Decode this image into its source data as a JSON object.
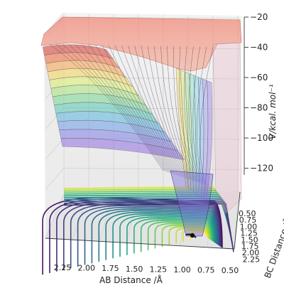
{
  "chart_data": {
    "type": "surface3d",
    "xlabel": "AB Distance /Å",
    "ylabel": "BC Distance /Å",
    "zlabel": "V/kcal. mol⁻¹",
    "xlim": [
      0.5,
      2.3
    ],
    "ylim": [
      0.5,
      2.3
    ],
    "zlim": [
      -130,
      -20
    ],
    "x_ticks": [
      "2.25",
      "2.00",
      "1.75",
      "1.50",
      "1.25",
      "1.00",
      "0.75",
      "0.50"
    ],
    "y_ticks": [
      "0.50",
      "0.75",
      "1.00",
      "1.25",
      "1.50",
      "1.75",
      "2.00",
      "2.25"
    ],
    "z_ticks": [
      "−20",
      "−40",
      "−60",
      "−80",
      "−100",
      "−120"
    ],
    "colormap": "rainbow",
    "contour_colormap": "viridis",
    "grid": true,
    "trajectory_point": {
      "ab": 0.8,
      "bc": 1.8
    }
  }
}
